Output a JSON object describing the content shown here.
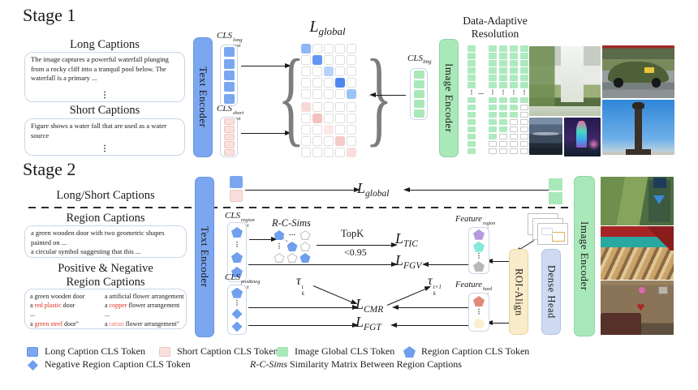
{
  "glyphs": {
    "vdots": "⋮",
    "hdots": "⋯",
    "brace_left": "{",
    "brace_right": "}"
  },
  "colors": {
    "token_blue": "#7ba7f0",
    "token_blue_border": "#6b97e0",
    "token_pink": "#fbdfdc",
    "token_pink_border": "#ecc7c3",
    "token_green": "#a9e8b8",
    "text_encoder_fill": "#7ba7f0",
    "image_encoder_fill": "#a9e8b8",
    "roi_fill": "#f9ecca",
    "roi_border": "#e6d3a0",
    "dense_fill": "#cfdaf2",
    "dense_border": "#b2c2e4",
    "pent_blue": "#6f9fee",
    "pent_purple": "#b49ade",
    "pent_teal": "#85ead9",
    "pent_gray": "#b8b8b8",
    "pent_red": "#df8a7b",
    "pent_yellow": "#f7f0cf",
    "red_text": "#e03020",
    "red_light_text": "#ef8070"
  },
  "stage1": {
    "title": "Stage 1",
    "long_heading": "Long Captions",
    "long_text": "The image captures a powerful waterfall plunging from a rocky cliff into a tranquil pool below. The waterfall is a primary ...",
    "short_heading": "Short Captions",
    "short_text": "Figure shows a water fall that are used as a water source",
    "text_encoder": "Text Encoder",
    "image_encoder": "Image Encoder",
    "cls_long": {
      "main": "CLS",
      "sub": "text",
      "sup": "long"
    },
    "cls_short": {
      "main": "CLS",
      "sub": "text",
      "sup": "short"
    },
    "cls_img": {
      "main": "CLS",
      "sub": "img"
    },
    "loss_global": {
      "main": "L",
      "sub": "global"
    },
    "dar_line1": "Data-Adaptive",
    "dar_line2": "Resolution",
    "tokens_long": {
      "count": 5,
      "color": "#7ba7f0"
    },
    "tokens_short": {
      "count": 5,
      "color": "#fbdfdc",
      "border": "#ecc7c3"
    },
    "tokens_img": {
      "count": 5,
      "color": "#a9e8b8"
    },
    "matrix_blue": {
      "size": 5,
      "diag": [
        "#8db8f7",
        "#6396f2",
        "#b9d3fb",
        "#4e88ef",
        "#9cc3f8"
      ]
    },
    "matrix_pink": {
      "size": 5,
      "diag": [
        "#f7dad7",
        "#f2c3be",
        "#fbe9e7",
        "#f4cbc6",
        "#f9dedb"
      ]
    },
    "dar_columns": [
      {
        "above": 6,
        "green": 8,
        "total": 8
      },
      {
        "above": 6,
        "green": 6,
        "total": 8
      },
      {
        "above": 6,
        "green": 5,
        "total": 8
      },
      {
        "above": 6,
        "green": 3,
        "total": 8
      },
      {
        "above": 6,
        "green": 1,
        "total": 8
      }
    ]
  },
  "stage2": {
    "title": "Stage 2",
    "longshort_label": "Long/Short Captions",
    "region_heading": "Region Captions",
    "region_line1": "a green wooden door with two geometric shapes painted on ...",
    "region_line2": "a circular symbol suggesting that this ...",
    "posneg_heading1": "Positive & Negative",
    "posneg_heading2": "Region Captions",
    "posneg_col1": [
      [
        [
          "a green wooden door",
          ""
        ]
      ],
      [
        [
          "a ",
          ""
        ],
        [
          "red plastic",
          "red"
        ],
        [
          " door",
          ""
        ]
      ],
      [
        [
          "...",
          ""
        ]
      ],
      [
        [
          "a ",
          ""
        ],
        [
          "green steel",
          "red"
        ],
        [
          " door\"",
          ""
        ]
      ]
    ],
    "posneg_col2": [
      [
        [
          "a artificial flower arrangement",
          ""
        ]
      ],
      [
        [
          "a ",
          ""
        ],
        [
          "copper",
          "red"
        ],
        [
          " flower arrangement",
          ""
        ]
      ],
      [
        [
          "...",
          ""
        ]
      ],
      [
        [
          "a ",
          ""
        ],
        [
          "rattan",
          "redlight"
        ],
        [
          " flower arrangement\"",
          ""
        ]
      ]
    ],
    "text_encoder": "Text Encoder",
    "image_encoder": "Image Encoder",
    "roi_align": "ROI-Align",
    "dense_head": "Dense Head",
    "cls_region": {
      "main": "CLS",
      "sub": "text",
      "sup": "region"
    },
    "cls_posneg": {
      "main": "CLS",
      "sub": "text",
      "sup": "pos&neg"
    },
    "rcsims_label": "R-C-Sims",
    "topk": "TopK",
    "thresh": "<0.95",
    "loss_global": {
      "main": "L",
      "sub": "global"
    },
    "loss_tic": {
      "main": "L",
      "sub": "TIC"
    },
    "loss_fgv": {
      "main": "L",
      "sub": "FGV"
    },
    "loss_cmr": {
      "main": "L",
      "sub": "CMR"
    },
    "loss_fgt": {
      "main": "L",
      "sub": "FGT"
    },
    "tau_t": {
      "main": "τ",
      "sub": "k",
      "sup": "t"
    },
    "tau_t1": {
      "main": "τ",
      "sub": "k",
      "sup": "t+1"
    },
    "feature_region": {
      "main": "Feature",
      "sub": "roi",
      "sup": "region"
    },
    "feature_hard": {
      "main": "Feature",
      "sub": "roi",
      "sup": "hard"
    },
    "rcsims_grid": [
      [
        "pb",
        "dh",
        "pw"
      ],
      [
        "dv",
        "pb",
        "pw"
      ],
      [
        "pw",
        "pw",
        "pb"
      ]
    ],
    "region_tokens": [
      "pent:#6f9fee",
      "dots",
      "pent:#6f9fee",
      "pent:#6f9fee"
    ],
    "posneg_tokens": [
      "pent:#6f9fee",
      "dots",
      "diam:#6f9fee",
      "diam:#6f9fee"
    ],
    "feature_region_tokens": [
      "pent:#b49ade",
      "pent:#85ead9",
      "dots",
      "pent:#b8b8b8"
    ],
    "feature_hard_tokens": [
      "pent:#df8a7b",
      "dots",
      "pent:#f7f0cf"
    ]
  },
  "legend": {
    "item1": "Long Caption CLS Token",
    "item2": "Short Caption CLS Token",
    "item3": "Image Global CLS Token",
    "item4": "Region Caption CLS Token",
    "item5": "Negative Region Caption CLS Token",
    "item6_italic": "R-C-Sims",
    "item6_rest": " Similarity Matrix Between Region Captions"
  }
}
